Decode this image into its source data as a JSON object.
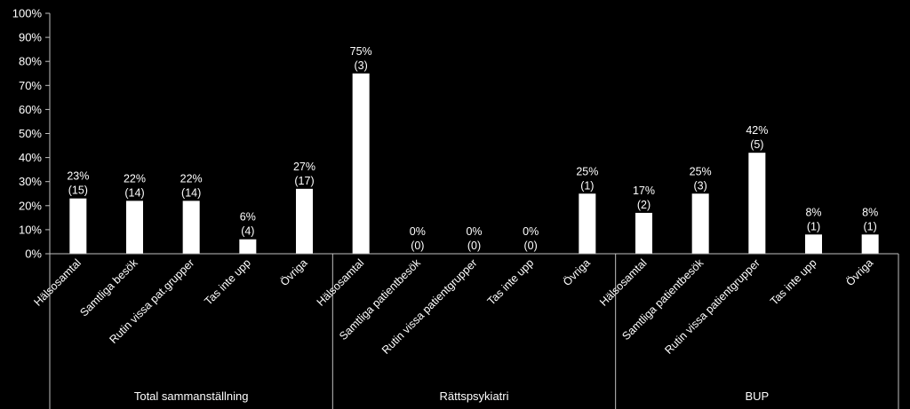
{
  "chart_data": {
    "type": "bar",
    "title": "",
    "xlabel": "",
    "ylabel": "",
    "ylim": [
      0,
      100
    ],
    "y_ticks": [
      "0%",
      "10%",
      "20%",
      "30%",
      "40%",
      "50%",
      "60%",
      "70%",
      "80%",
      "90%",
      "100%"
    ],
    "grid": false,
    "legend": "none",
    "colors": {
      "background": "#000000",
      "bar": "#FFFFFF",
      "text": "#FFFFFF",
      "axis": "#BFBFBF"
    },
    "groups": [
      {
        "name": "Total sammanställning",
        "categories": [
          "Hälsosamtal",
          "Samtliga besök",
          "Rutin vissa pat.grupper",
          "Tas inte upp",
          "Övriga"
        ],
        "values": [
          23,
          22,
          22,
          6,
          27
        ],
        "labels": [
          "23%",
          "22%",
          "22%",
          "6%",
          "27%"
        ],
        "counts": [
          "(15)",
          "(14)",
          "(14)",
          "(4)",
          "(17)"
        ]
      },
      {
        "name": "Rättspsykiatri",
        "categories": [
          "Hälsosamtal",
          "Samtliga patientbesök",
          "Rutin vissa patientgrupper",
          "Tas inte upp",
          "Övriga"
        ],
        "values": [
          75,
          0,
          0,
          0,
          25
        ],
        "labels": [
          "75%",
          "0%",
          "0%",
          "0%",
          "25%"
        ],
        "counts": [
          "(3)",
          "(0)",
          "(0)",
          "(0)",
          "(1)"
        ]
      },
      {
        "name": "BUP",
        "categories": [
          "Hälsosamtal",
          "Samtliga patientbesök",
          "Rutin vissa patientgrupper",
          "Tas inte upp",
          "Övriga"
        ],
        "values": [
          17,
          25,
          42,
          8,
          8
        ],
        "labels": [
          "17%",
          "25%",
          "42%",
          "8%",
          "8%"
        ],
        "counts": [
          "(2)",
          "(3)",
          "(5)",
          "(1)",
          "(1)"
        ]
      }
    ]
  }
}
